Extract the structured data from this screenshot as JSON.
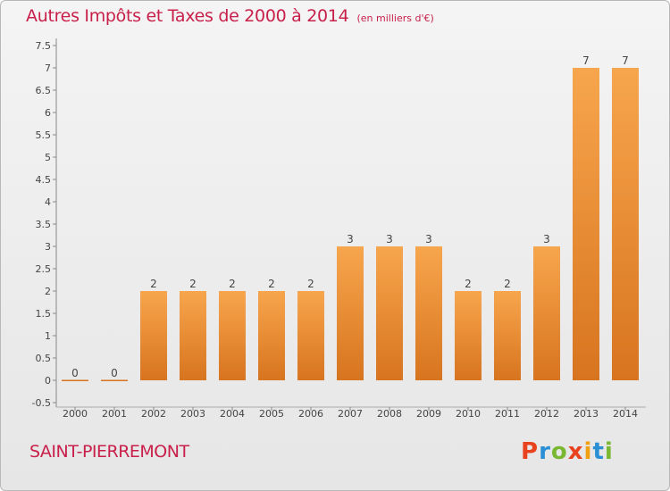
{
  "header": {
    "title": "Autres Impôts et Taxes de 2000 à 2014",
    "unit": "(en milliers d'€)"
  },
  "footer": {
    "commune": "SAINT-PIERREMONT",
    "logo_text": "Proxiti"
  },
  "chart_data": {
    "type": "bar",
    "title": "Autres Impôts et Taxes de 2000 à 2014",
    "subtitle": "(en milliers d'€)",
    "categories": [
      "2000",
      "2001",
      "2002",
      "2003",
      "2004",
      "2005",
      "2006",
      "2007",
      "2008",
      "2009",
      "2010",
      "2011",
      "2012",
      "2013",
      "2014"
    ],
    "values": [
      0,
      0,
      2,
      2,
      2,
      2,
      2,
      3,
      3,
      3,
      2,
      2,
      3,
      7,
      7
    ],
    "data_labels": [
      "0",
      "0",
      "2",
      "2",
      "2",
      "2",
      "2",
      "3",
      "3",
      "3",
      "2",
      "2",
      "3",
      "7",
      "7"
    ],
    "yticks": [
      "-0.5",
      "0",
      "0.5",
      "1",
      "1.5",
      "2",
      "2.5",
      "3",
      "3.5",
      "4",
      "4.5",
      "5",
      "5.5",
      "6",
      "6.5",
      "7",
      "7.5"
    ],
    "ylim": [
      -0.5,
      7.5
    ],
    "grid": false,
    "colors": {
      "bar_light": "#f7a64e",
      "bar_dark": "#d8741f",
      "text": "#c8204a"
    }
  }
}
